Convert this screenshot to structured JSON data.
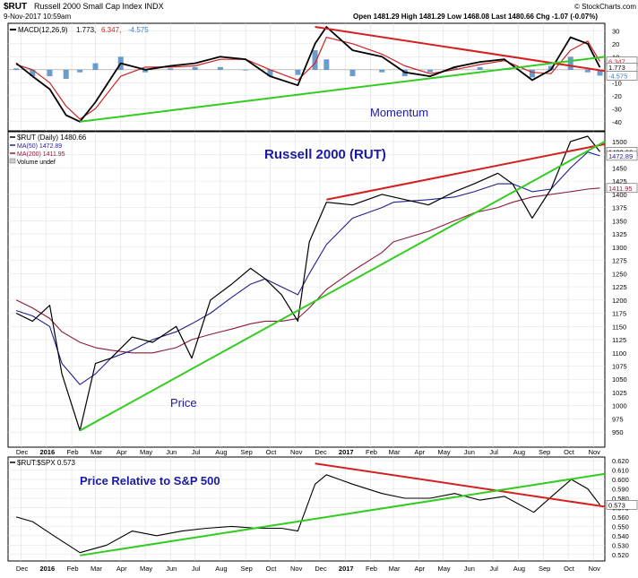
{
  "header": {
    "symbol": "$RUT",
    "name": "Russell 2000 Small Cap Index INDX",
    "date": "9-Nov-2017 10:59am",
    "quote": "Open 1481.29  High 1481.29  Low 1468.08  Last 1480.66  Chg -1.07 (-0.07%)",
    "credit": "© StockCharts.com"
  },
  "macd_panel": {
    "legend_name": "MACD(12,26,9)",
    "legend_v1": "1.773,",
    "legend_v2": "6.347,",
    "legend_v3": "-4.575",
    "annotation": "Momentum",
    "y_ticks": [
      "30",
      "20",
      "10",
      "0",
      "-10",
      "-20",
      "-30",
      "-40"
    ],
    "value_tags": [
      "6.347",
      "1.773",
      "-4.575"
    ]
  },
  "price_panel": {
    "legend": [
      "$RUT (Daily) 1480.66",
      "MA(50) 1472.89",
      "MA(200) 1411.95",
      "Volume undef"
    ],
    "title": "Russell 2000 (RUT)",
    "annotation": "Price",
    "y_ticks": [
      "1500",
      "1475",
      "1450",
      "1425",
      "1400",
      "1375",
      "1350",
      "1325",
      "1300",
      "1275",
      "1250",
      "1225",
      "1200",
      "1175",
      "1150",
      "1125",
      "1100",
      "1075",
      "1050",
      "1025",
      "1000",
      "975",
      "950"
    ],
    "value_tags": [
      "1480.66",
      "1472.89",
      "1411.95"
    ]
  },
  "ratio_panel": {
    "legend": "$RUT:$SPX 0.573",
    "annotation": "Price Relative to S&P 500",
    "y_ticks": [
      "0.620",
      "0.610",
      "0.600",
      "0.590",
      "0.580",
      "0.570",
      "0.560",
      "0.550",
      "0.540",
      "0.530",
      "0.520"
    ],
    "value_tag": "0.573"
  },
  "x_axis": {
    "labels": [
      "Dec",
      "2016",
      "Feb",
      "Mar",
      "Apr",
      "May",
      "Jun",
      "Jul",
      "Aug",
      "Sep",
      "Oct",
      "Nov",
      "Dec",
      "2017",
      "Feb",
      "Mar",
      "Apr",
      "May",
      "Jun",
      "Jul",
      "Aug",
      "Sep",
      "Oct",
      "Nov"
    ]
  },
  "colors": {
    "price": "#000000",
    "ma50": "#1f1f8f",
    "ma200": "#8b1a3a",
    "macd_signal": "#cc2222",
    "histogram": "#3a7bbd",
    "trend_red": "#d42020",
    "trend_green": "#33cc22",
    "annotation": "#1a1aa8"
  },
  "chart_data": [
    {
      "type": "line",
      "panel": "price",
      "title": "Russell 2000 (RUT)",
      "x": [
        "2015-11-25",
        "2015-12-15",
        "2016-01-05",
        "2016-01-20",
        "2016-02-11",
        "2016-03-01",
        "2016-03-20",
        "2016-04-15",
        "2016-05-10",
        "2016-06-08",
        "2016-06-27",
        "2016-07-20",
        "2016-08-15",
        "2016-09-07",
        "2016-09-25",
        "2016-10-15",
        "2016-11-04",
        "2016-11-18",
        "2016-12-09",
        "2017-01-10",
        "2017-02-15",
        "2017-03-01",
        "2017-04-13",
        "2017-05-15",
        "2017-06-08",
        "2017-07-07",
        "2017-07-25",
        "2017-08-18",
        "2017-09-10",
        "2017-10-04",
        "2017-10-25",
        "2017-11-09"
      ],
      "series": [
        {
          "name": "$RUT (Daily)",
          "values": [
            1175,
            1160,
            1190,
            1060,
            953,
            1080,
            1090,
            1130,
            1120,
            1150,
            1090,
            1200,
            1230,
            1260,
            1240,
            1210,
            1160,
            1310,
            1385,
            1380,
            1400,
            1395,
            1380,
            1405,
            1420,
            1440,
            1420,
            1355,
            1410,
            1500,
            1510,
            1480.66
          ]
        },
        {
          "name": "MA(50)",
          "values": [
            1180,
            1170,
            1150,
            1080,
            1040,
            1060,
            1090,
            1105,
            1125,
            1140,
            1155,
            1175,
            1205,
            1230,
            1240,
            1225,
            1210,
            1250,
            1305,
            1355,
            1375,
            1385,
            1390,
            1395,
            1405,
            1420,
            1420,
            1405,
            1410,
            1450,
            1480,
            1472.89
          ]
        },
        {
          "name": "MA(200)",
          "values": [
            1200,
            1185,
            1165,
            1140,
            1120,
            1110,
            1105,
            1100,
            1100,
            1110,
            1125,
            1135,
            1145,
            1155,
            1160,
            1160,
            1165,
            1185,
            1220,
            1255,
            1290,
            1310,
            1330,
            1350,
            1365,
            1375,
            1385,
            1395,
            1400,
            1405,
            1410,
            1411.95
          ]
        }
      ],
      "ylim": [
        930,
        1510
      ]
    },
    {
      "type": "line",
      "panel": "macd",
      "title": "MACD(12,26,9)",
      "x": [
        "2015-11-25",
        "2015-12-15",
        "2016-01-05",
        "2016-01-25",
        "2016-02-11",
        "2016-03-01",
        "2016-04-01",
        "2016-05-01",
        "2016-06-01",
        "2016-07-01",
        "2016-08-01",
        "2016-09-01",
        "2016-10-01",
        "2016-11-04",
        "2016-11-25",
        "2016-12-09",
        "2017-01-10",
        "2017-02-15",
        "2017-03-15",
        "2017-04-15",
        "2017-05-15",
        "2017-06-15",
        "2017-07-15",
        "2017-08-18",
        "2017-09-10",
        "2017-10-04",
        "2017-10-25",
        "2017-11-09"
      ],
      "series": [
        {
          "name": "MACD",
          "values": [
            5,
            -5,
            -15,
            -35,
            -40,
            -25,
            5,
            0,
            3,
            5,
            10,
            8,
            -5,
            -12,
            20,
            33,
            15,
            10,
            -2,
            -5,
            2,
            6,
            8,
            -8,
            0,
            25,
            20,
            1.773
          ]
        },
        {
          "name": "Signal",
          "values": [
            4,
            0,
            -10,
            -28,
            -38,
            -30,
            -5,
            2,
            2,
            3,
            8,
            8,
            0,
            -8,
            5,
            25,
            20,
            12,
            3,
            -3,
            0,
            4,
            7,
            -2,
            -3,
            15,
            22,
            6.347
          ]
        },
        {
          "name": "Histogram",
          "values": [
            1,
            -5,
            -5,
            -7,
            -2,
            5,
            10,
            -2,
            1,
            2,
            2,
            0,
            -5,
            -4,
            15,
            8,
            -5,
            -2,
            -5,
            -2,
            2,
            2,
            1,
            -6,
            3,
            10,
            -2,
            -4.575
          ]
        }
      ],
      "ylim": [
        -45,
        33
      ]
    },
    {
      "type": "line",
      "panel": "ratio",
      "title": "$RUT:$SPX",
      "x": [
        "2015-11-25",
        "2015-12-15",
        "2016-01-10",
        "2016-02-11",
        "2016-03-15",
        "2016-04-15",
        "2016-05-15",
        "2016-06-15",
        "2016-07-15",
        "2016-08-15",
        "2016-09-15",
        "2016-10-15",
        "2016-11-04",
        "2016-11-25",
        "2016-12-09",
        "2017-01-10",
        "2017-02-15",
        "2017-03-15",
        "2017-04-15",
        "2017-05-15",
        "2017-06-15",
        "2017-07-15",
        "2017-08-20",
        "2017-09-15",
        "2017-10-05",
        "2017-10-25",
        "2017-11-09"
      ],
      "series": [
        {
          "name": "$RUT:$SPX",
          "values": [
            0.56,
            0.555,
            0.54,
            0.522,
            0.53,
            0.545,
            0.54,
            0.545,
            0.548,
            0.55,
            0.548,
            0.548,
            0.545,
            0.595,
            0.605,
            0.595,
            0.585,
            0.58,
            0.58,
            0.585,
            0.578,
            0.582,
            0.565,
            0.585,
            0.6,
            0.59,
            0.573
          ]
        }
      ],
      "ylim": [
        0.515,
        0.622
      ]
    }
  ]
}
